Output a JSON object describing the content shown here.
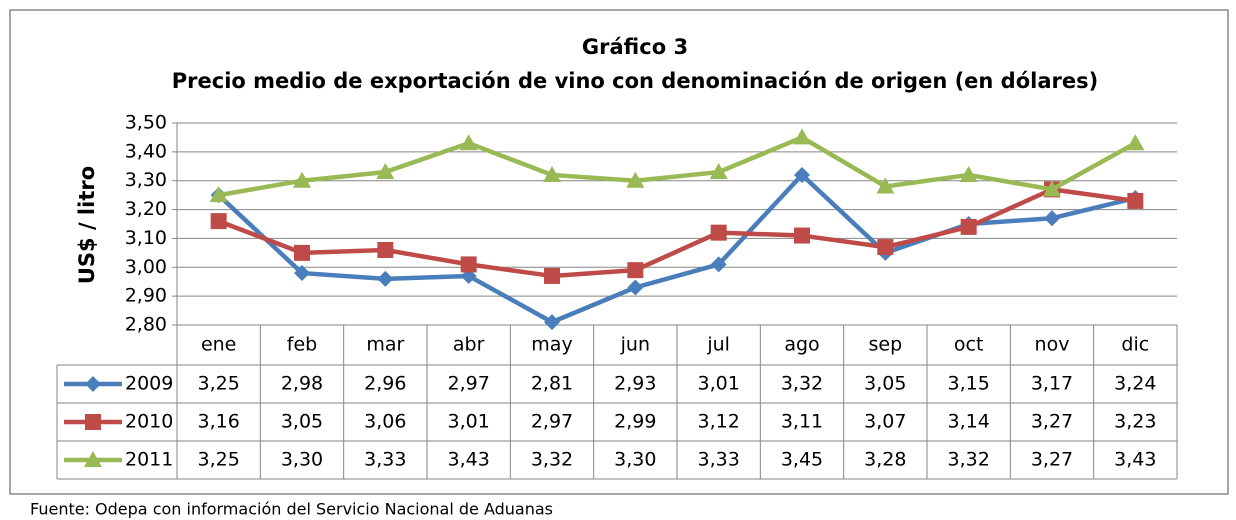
{
  "chart_data": {
    "type": "line",
    "title": "Gráfico 3",
    "subtitle": "Precio medio de exportación de vino con denominación de origen (en dólares)",
    "y_label": "US$ / litro",
    "source": "Fuente: Odepa con información del Servicio Nacional de Aduanas",
    "categories": [
      "ene",
      "feb",
      "mar",
      "abr",
      "may",
      "jun",
      "jul",
      "ago",
      "sep",
      "oct",
      "nov",
      "dic"
    ],
    "series": [
      {
        "name": "2009",
        "color": "#4a7ebb",
        "marker": "diamond",
        "values": [
          3.25,
          2.98,
          2.96,
          2.97,
          2.81,
          2.93,
          3.01,
          3.32,
          3.05,
          3.15,
          3.17,
          3.24
        ],
        "value_labels": [
          "3,25",
          "2,98",
          "2,96",
          "2,97",
          "2,81",
          "2,93",
          "3,01",
          "3,32",
          "3,05",
          "3,15",
          "3,17",
          "3,24"
        ]
      },
      {
        "name": "2010",
        "color": "#be4b48",
        "marker": "square",
        "values": [
          3.16,
          3.05,
          3.06,
          3.01,
          2.97,
          2.99,
          3.12,
          3.11,
          3.07,
          3.14,
          3.27,
          3.23
        ],
        "value_labels": [
          "3,16",
          "3,05",
          "3,06",
          "3,01",
          "2,97",
          "2,99",
          "3,12",
          "3,11",
          "3,07",
          "3,14",
          "3,27",
          "3,23"
        ]
      },
      {
        "name": "2011",
        "color": "#98b954",
        "marker": "triangle",
        "values": [
          3.25,
          3.3,
          3.33,
          3.43,
          3.32,
          3.3,
          3.33,
          3.45,
          3.28,
          3.32,
          3.27,
          3.43
        ],
        "value_labels": [
          "3,25",
          "3,30",
          "3,33",
          "3,43",
          "3,32",
          "3,30",
          "3,33",
          "3,45",
          "3,28",
          "3,32",
          "3,27",
          "3,43"
        ]
      }
    ],
    "ylim": [
      2.8,
      3.5
    ],
    "yticks": [
      {
        "value": 2.8,
        "label": "2,80"
      },
      {
        "value": 2.9,
        "label": "2,90"
      },
      {
        "value": 3.0,
        "label": "3,00"
      },
      {
        "value": 3.1,
        "label": "3,10"
      },
      {
        "value": 3.2,
        "label": "3,20"
      },
      {
        "value": 3.3,
        "label": "3,30"
      },
      {
        "value": 3.4,
        "label": "3,40"
      },
      {
        "value": 3.5,
        "label": "3,50"
      }
    ],
    "grid": true
  }
}
